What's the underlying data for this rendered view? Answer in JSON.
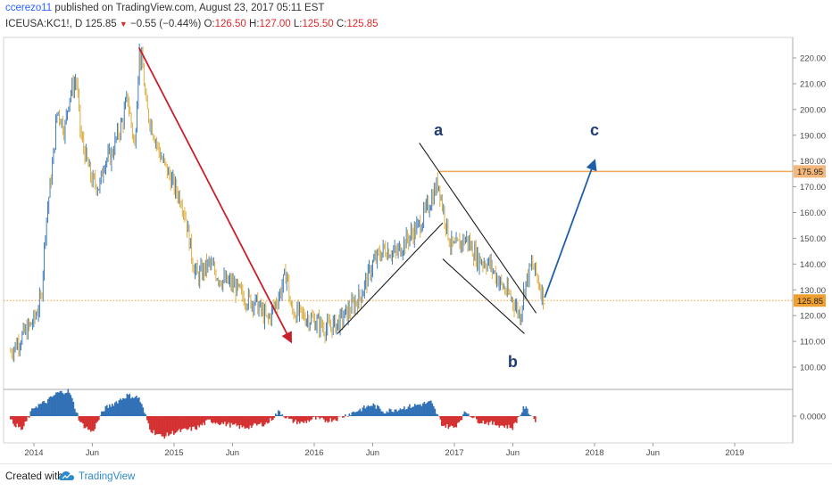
{
  "header": {
    "author": "ccerezo11",
    "published": "published on TradingView.com, August 23, 2017 05:11 EST",
    "symbol": "ICEUSA:KC1!, D",
    "last": "125.85",
    "change": "−0.55 (−0.44%)",
    "o_label": "O:",
    "o_val": "126.50",
    "h_label": "H:",
    "h_val": "127.00",
    "l_label": "L:",
    "l_val": "125.50",
    "c_label": "C:",
    "c_val": "125.85"
  },
  "footer": {
    "created_with": "Created with",
    "brand": "TradingView"
  },
  "colors": {
    "up": "#2e6fb5",
    "down": "#d9a52c",
    "hline": "#f2a65a",
    "price_line": "#f0a030",
    "red_arrow": "#c8202b",
    "blue_arrow": "#1f5fa8",
    "osc_pos": "#2e6fb5",
    "osc_neg": "#d32f2f",
    "wave_label": "#1f3d73"
  },
  "chart_data": {
    "type": "candlestick",
    "y_ticks": [
      "220.00",
      "210.00",
      "200.00",
      "190.00",
      "180.00",
      "170.00",
      "160.00",
      "150.00",
      "140.00",
      "130.00",
      "120.00",
      "110.00",
      "100.00"
    ],
    "ylim": [
      95,
      226
    ],
    "x_ticks": [
      {
        "label": "2014",
        "date": "2014-01"
      },
      {
        "label": "Jun",
        "date": "2014-06"
      },
      {
        "label": "2015",
        "date": "2015-01"
      },
      {
        "label": "Jun",
        "date": "2015-06"
      },
      {
        "label": "2016",
        "date": "2016-01"
      },
      {
        "label": "Jun",
        "date": "2016-06"
      },
      {
        "label": "2017",
        "date": "2017-01"
      },
      {
        "label": "Jun",
        "date": "2017-06"
      },
      {
        "label": "2018",
        "date": "2018-01"
      },
      {
        "label": "Jun",
        "date": "2018-06"
      },
      {
        "label": "2019",
        "date": "2019-01"
      }
    ],
    "price_path": [
      [
        "2013-11",
        106
      ],
      [
        "2013-12",
        112
      ],
      [
        "2014-01",
        118
      ],
      [
        "2014-01-20",
        127
      ],
      [
        "2014-02",
        155
      ],
      [
        "2014-02-20",
        180
      ],
      [
        "2014-03",
        200
      ],
      [
        "2014-03-20",
        192
      ],
      [
        "2014-04",
        205
      ],
      [
        "2014-04-20",
        212
      ],
      [
        "2014-05",
        190
      ],
      [
        "2014-05-20",
        178
      ],
      [
        "2014-06",
        172
      ],
      [
        "2014-06-20",
        170
      ],
      [
        "2014-07",
        180
      ],
      [
        "2014-07-20",
        182
      ],
      [
        "2014-08",
        188
      ],
      [
        "2014-08-20",
        196
      ],
      [
        "2014-09",
        205
      ],
      [
        "2014-09-20",
        185
      ],
      [
        "2014-10",
        222
      ],
      [
        "2014-10-10",
        217
      ],
      [
        "2014-10-20",
        200
      ],
      [
        "2014-11",
        195
      ],
      [
        "2014-11-20",
        185
      ],
      [
        "2014-12",
        180
      ],
      [
        "2014-12-20",
        174
      ],
      [
        "2015-01",
        170
      ],
      [
        "2015-01-20",
        165
      ],
      [
        "2015-02",
        158
      ],
      [
        "2015-02-20",
        140
      ],
      [
        "2015-03",
        135
      ],
      [
        "2015-04",
        140
      ],
      [
        "2015-05",
        134
      ],
      [
        "2015-06",
        132
      ],
      [
        "2015-07",
        127
      ],
      [
        "2015-08",
        125
      ],
      [
        "2015-09",
        118
      ],
      [
        "2015-10",
        128
      ],
      [
        "2015-10-20",
        137
      ],
      [
        "2015-11",
        122
      ],
      [
        "2015-12",
        120
      ],
      [
        "2016-01",
        118
      ],
      [
        "2016-02",
        115
      ],
      [
        "2016-03",
        117
      ],
      [
        "2016-04",
        122
      ],
      [
        "2016-05",
        128
      ],
      [
        "2016-06",
        140
      ],
      [
        "2016-07",
        146
      ],
      [
        "2016-08",
        144
      ],
      [
        "2016-09",
        150
      ],
      [
        "2016-10",
        155
      ],
      [
        "2016-11",
        165
      ],
      [
        "2016-11-20",
        172
      ],
      [
        "2016-12",
        162
      ],
      [
        "2016-12-20",
        148
      ],
      [
        "2017-01",
        146
      ],
      [
        "2017-02",
        150
      ],
      [
        "2017-03",
        142
      ],
      [
        "2017-04",
        140
      ],
      [
        "2017-05",
        132
      ],
      [
        "2017-06",
        126
      ],
      [
        "2017-06-20",
        120
      ],
      [
        "2017-07",
        131
      ],
      [
        "2017-07-20",
        140
      ],
      [
        "2017-08",
        136
      ],
      [
        "2017-08-23",
        125.85
      ]
    ],
    "oscillator_path": [
      [
        "2013-11",
        -2
      ],
      [
        "2013-12",
        -6
      ],
      [
        "2014-01",
        4
      ],
      [
        "2014-02",
        6
      ],
      [
        "2014-03",
        10
      ],
      [
        "2014-04",
        11
      ],
      [
        "2014-05",
        -3
      ],
      [
        "2014-06",
        -7
      ],
      [
        "2014-07",
        3
      ],
      [
        "2014-08",
        6
      ],
      [
        "2014-09",
        9
      ],
      [
        "2014-10",
        8
      ],
      [
        "2014-11",
        -6
      ],
      [
        "2014-12",
        -9
      ],
      [
        "2015-01",
        -7
      ],
      [
        "2015-02",
        -6
      ],
      [
        "2015-03",
        -5
      ],
      [
        "2015-04",
        -2
      ],
      [
        "2015-05",
        -3
      ],
      [
        "2015-06",
        -4
      ],
      [
        "2015-07",
        -5
      ],
      [
        "2015-08",
        -4
      ],
      [
        "2015-09",
        -3
      ],
      [
        "2015-10",
        2
      ],
      [
        "2015-11",
        -2
      ],
      [
        "2015-12",
        -3
      ],
      [
        "2016-01",
        -1
      ],
      [
        "2016-02",
        -2
      ],
      [
        "2016-03",
        -1
      ],
      [
        "2016-04",
        1
      ],
      [
        "2016-05",
        3
      ],
      [
        "2016-06",
        5
      ],
      [
        "2016-07",
        2
      ],
      [
        "2016-08",
        3
      ],
      [
        "2016-09",
        4
      ],
      [
        "2016-10",
        5
      ],
      [
        "2016-11",
        6
      ],
      [
        "2016-12",
        -4
      ],
      [
        "2017-01",
        -5
      ],
      [
        "2017-02",
        2
      ],
      [
        "2017-03",
        -2
      ],
      [
        "2017-04",
        -3
      ],
      [
        "2017-05",
        -4
      ],
      [
        "2017-06",
        -5
      ],
      [
        "2017-07",
        4
      ],
      [
        "2017-08",
        -2
      ]
    ],
    "oscillator_tick": "0.0000",
    "horizontal_levels": [
      {
        "value": 175.95,
        "label": "175.95"
      },
      {
        "value": 125.85,
        "label": "125.85"
      }
    ],
    "annotations": [
      {
        "type": "arrow",
        "from": [
          "2014-10",
          224
        ],
        "to": [
          "2015-11",
          110
        ]
      },
      {
        "type": "line",
        "from": [
          "2016-03",
          113
        ],
        "to": [
          "2016-12",
          156
        ]
      },
      {
        "type": "line",
        "from": [
          "2016-10",
          187
        ],
        "to": [
          "2017-08",
          121
        ]
      },
      {
        "type": "line",
        "from": [
          "2016-12",
          142
        ],
        "to": [
          "2017-07",
          113
        ]
      },
      {
        "type": "arrow",
        "from": [
          "2017-08-23",
          127
        ],
        "to": [
          "2018-01",
          180
        ]
      },
      {
        "type": "label",
        "text": "a",
        "at": [
          "2016-11-20",
          190
        ]
      },
      {
        "type": "label",
        "text": "b",
        "at": [
          "2017-06",
          100
        ]
      },
      {
        "type": "label",
        "text": "c",
        "at": [
          "2018-01",
          190
        ]
      }
    ]
  }
}
